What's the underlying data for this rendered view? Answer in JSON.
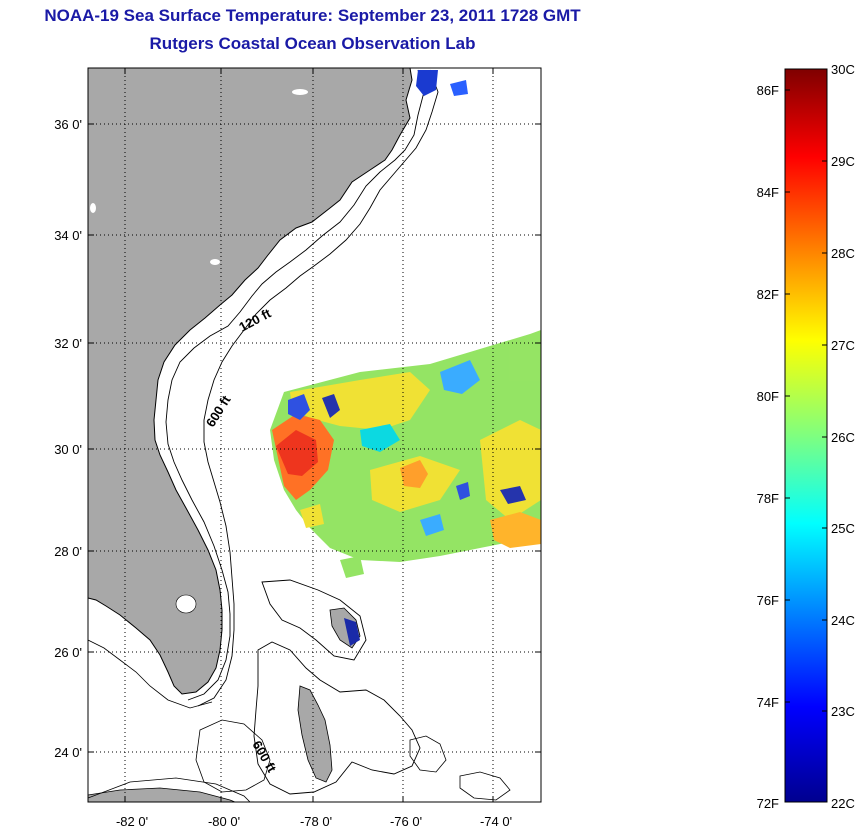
{
  "header": {
    "title": "NOAA-19 Sea Surface Temperature:  September 23, 2011 1728 GMT",
    "subtitle": "Rutgers Coastal Ocean Observation Lab"
  },
  "map": {
    "lon_ticks": [
      "-82 0'",
      "-80 0'",
      "-78 0'",
      "-76 0'",
      "-74 0'"
    ],
    "lat_ticks": [
      "36 0'",
      "34 0'",
      "32 0'",
      "30 0'",
      "28 0'",
      "26 0'",
      "24 0'"
    ],
    "contour_labels": [
      "120 ft",
      "600 ft",
      "600 ft"
    ],
    "colors": {
      "land": "#a8a8a8",
      "water": "#ffffff",
      "grid": "#000000"
    }
  },
  "colorbar": {
    "fahrenheit_labels": [
      "86F",
      "84F",
      "82F",
      "80F",
      "78F",
      "76F",
      "74F",
      "72F"
    ],
    "celsius_labels": [
      "30C",
      "29C",
      "28C",
      "27C",
      "26C",
      "25C",
      "24C",
      "23C",
      "22C"
    ],
    "colormap": [
      "#7f0000",
      "#ff0000",
      "#ff7f00",
      "#ffff00",
      "#7fff7f",
      "#00ffff",
      "#007fff",
      "#0000ff",
      "#00008f"
    ]
  }
}
